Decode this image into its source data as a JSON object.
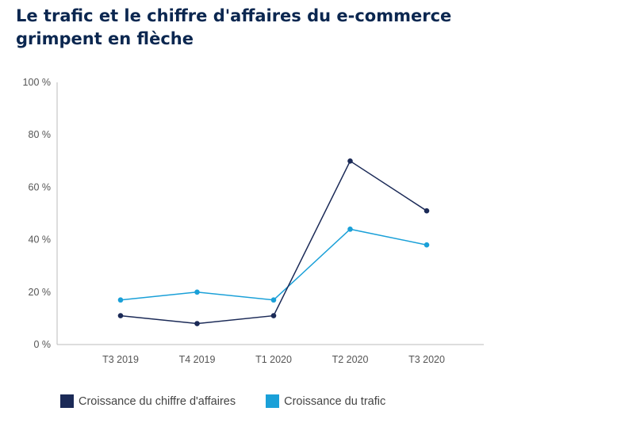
{
  "title": "Le trafic et le chiffre d'affaires du e-commerce grimpent en flèche",
  "colors": {
    "revenue": "#1b2a57",
    "traffic": "#1aa0d8",
    "axis": "#bbbbbb"
  },
  "chart_data": {
    "type": "line",
    "title": "Le trafic et le chiffre d'affaires du e-commerce grimpent en flèche",
    "categories": [
      "T3 2019",
      "T4 2019",
      "T1 2020",
      "T2 2020",
      "T3 2020"
    ],
    "y_ticks": [
      0,
      20,
      40,
      60,
      80,
      100
    ],
    "y_tick_labels": [
      "0 %",
      "20 %",
      "40 %",
      "60 %",
      "80 %",
      "100 %"
    ],
    "ylim": [
      0,
      100
    ],
    "grid": false,
    "legend_position": "bottom-left",
    "series": [
      {
        "name": "Croissance du chiffre d'affaires",
        "color": "#1b2a57",
        "values": [
          11,
          8,
          11,
          70,
          51
        ]
      },
      {
        "name": "Croissance du trafic",
        "color": "#1aa0d8",
        "values": [
          17,
          20,
          17,
          44,
          38
        ]
      }
    ]
  },
  "legend": [
    {
      "label": "Croissance du chiffre d'affaires",
      "color": "#1b2a57"
    },
    {
      "label": "Croissance du trafic",
      "color": "#1aa0d8"
    }
  ]
}
